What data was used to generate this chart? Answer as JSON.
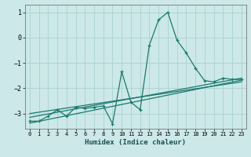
{
  "title": "",
  "xlabel": "Humidex (Indice chaleur)",
  "ylabel": "",
  "bg_color": "#cde8e8",
  "grid_color": "#aed4d4",
  "line_color": "#1a7a6e",
  "xlim": [
    -0.5,
    23.5
  ],
  "ylim": [
    -3.6,
    1.3
  ],
  "yticks": [
    1,
    0,
    -1,
    -2,
    -3
  ],
  "xticks": [
    0,
    1,
    2,
    3,
    4,
    5,
    6,
    7,
    8,
    9,
    10,
    11,
    12,
    13,
    14,
    15,
    16,
    17,
    18,
    19,
    20,
    21,
    22,
    23
  ],
  "scatter_x": [
    0,
    1,
    2,
    3,
    4,
    5,
    6,
    7,
    8,
    9,
    10,
    11,
    12,
    13,
    14,
    15,
    16,
    17,
    18,
    19,
    20,
    21,
    22,
    23
  ],
  "scatter_y": [
    -3.3,
    -3.3,
    -3.1,
    -2.85,
    -3.1,
    -2.75,
    -2.8,
    -2.75,
    -2.7,
    -3.4,
    -1.35,
    -2.55,
    -2.85,
    -0.3,
    0.7,
    1.0,
    -0.1,
    -0.6,
    -1.2,
    -1.7,
    -1.75,
    -1.6,
    -1.65,
    -1.65
  ],
  "line1_x": [
    0,
    23
  ],
  "line1_y": [
    -3.15,
    -1.6
  ],
  "line2_x": [
    0,
    23
  ],
  "line2_y": [
    -3.0,
    -1.75
  ],
  "line3_x": [
    0,
    23
  ],
  "line3_y": [
    -3.38,
    -1.68
  ]
}
